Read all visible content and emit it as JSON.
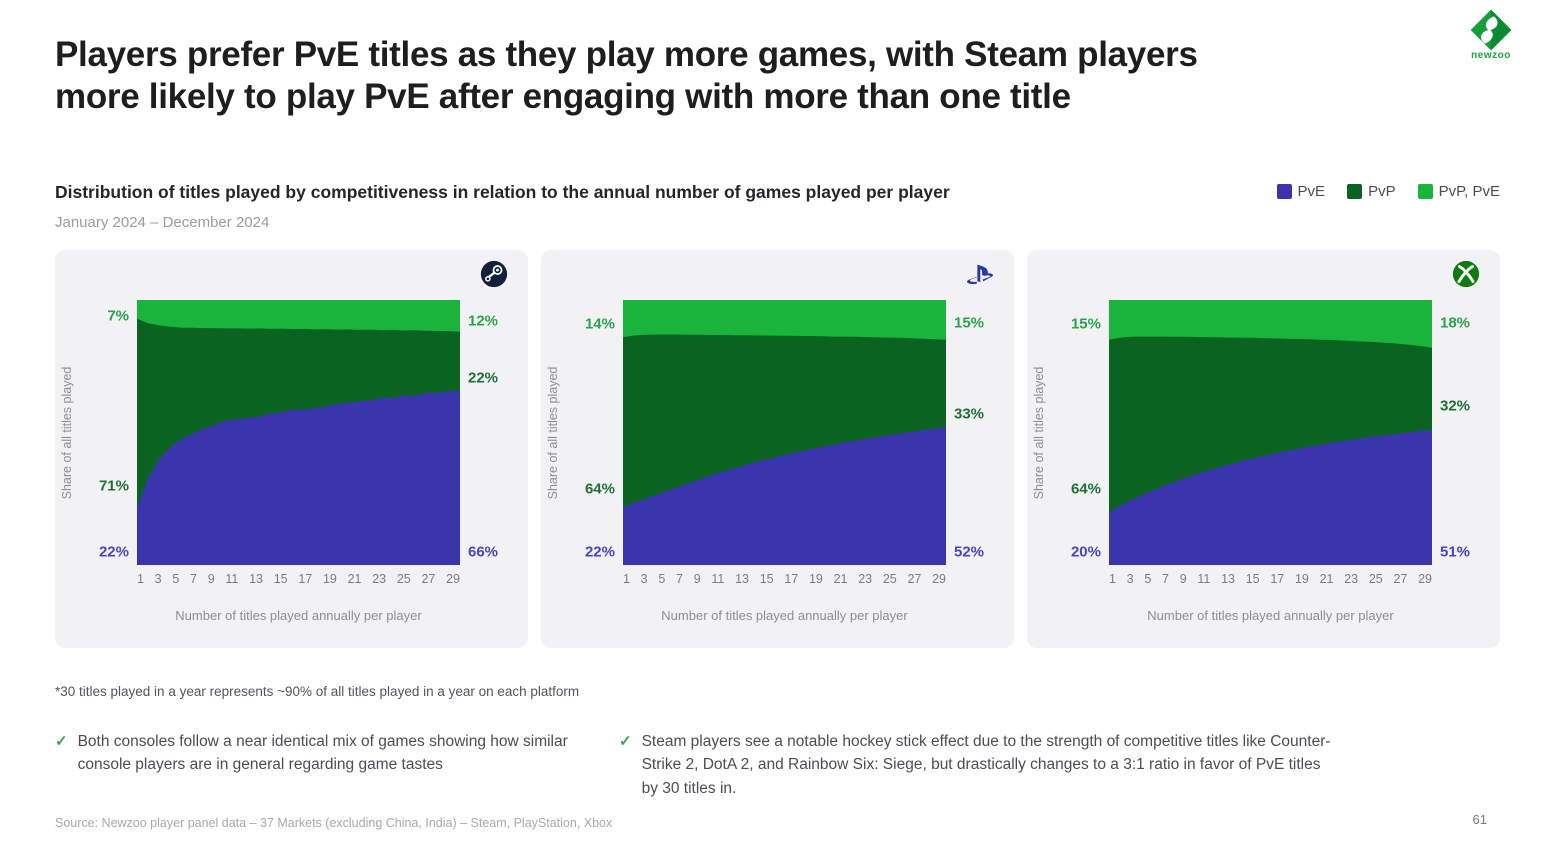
{
  "page": {
    "title_lines": [
      "Players prefer PvE titles as they play more games, with Steam players",
      "more likely to play PvE after engaging with more than one title"
    ],
    "page_number": "61"
  },
  "logo": {
    "brand": "newzoo"
  },
  "chart_section": {
    "heading": "Distribution of titles played by competitiveness in relation to the annual number of games played per player",
    "period": "January 2024 – December 2024",
    "legend": [
      {
        "label": "PvE",
        "band": "pve"
      },
      {
        "label": "PvP",
        "band": "pvp"
      },
      {
        "label": "PvP, PvE",
        "band": "pvp_pve"
      }
    ],
    "axis": {
      "x_label": "Number of titles played annually per player",
      "y_label": "Share of all titles played",
      "x_ticks": [
        "1",
        "3",
        "5",
        "7",
        "9",
        "11",
        "13",
        "15",
        "17",
        "19",
        "21",
        "23",
        "25",
        "27",
        "29"
      ]
    }
  },
  "colors": {
    "pve": "#3b35ad",
    "pvp": "#0b6322",
    "pvp_pve": "#1ab33c",
    "pve_label": "#4b43c2",
    "pvp_label": "#1d7034",
    "pvp_pve_label": "#2aa34a"
  },
  "chart_data": [
    {
      "type": "stacked_area",
      "platform": "Steam",
      "x_range": [
        1,
        30
      ],
      "ylim": [
        0,
        100
      ],
      "series_pve": [
        22,
        33,
        40,
        44.5,
        47.5,
        49.5,
        51.5,
        53,
        54.5,
        55,
        55.5,
        56,
        57.3,
        57.6,
        58.8,
        58.6,
        59.2,
        59.8,
        60.8,
        61.2,
        61.8,
        62.1,
        63.2,
        63,
        64.2,
        63.8,
        65.2,
        65,
        65.6,
        66
      ],
      "series_pvp_pve": [
        7,
        8.8,
        9.6,
        10.1,
        10.4,
        10.5,
        10.6,
        10.6,
        10.7,
        10.7,
        10.8,
        10.7,
        10.9,
        10.8,
        11,
        10.9,
        11.1,
        11,
        11.2,
        11.1,
        11.3,
        11.2,
        11.4,
        11.3,
        11.5,
        11.4,
        11.6,
        11.7,
        11.8,
        12
      ],
      "left_labels": [
        {
          "text": "7%",
          "band": "pvp_pve",
          "pos": 6
        },
        {
          "text": "71%",
          "band": "pvp",
          "pos": 70
        },
        {
          "text": "22%",
          "band": "pve",
          "pos": 95
        }
      ],
      "right_labels": [
        {
          "text": "12%",
          "band": "pvp_pve",
          "pos": 8
        },
        {
          "text": "22%",
          "band": "pvp",
          "pos": 29.5
        },
        {
          "text": "66%",
          "band": "pve",
          "pos": 95
        }
      ]
    },
    {
      "type": "stacked_area",
      "platform": "PlayStation",
      "x_range": [
        1,
        30
      ],
      "ylim": [
        0,
        100
      ],
      "series_pve": [
        22,
        23.5,
        25,
        26.5,
        28,
        29.5,
        31,
        32.5,
        34,
        35.3,
        36.5,
        37.8,
        39,
        40,
        41,
        42,
        43,
        43.8,
        44.7,
        45.5,
        46.3,
        47,
        47.8,
        48.4,
        49.1,
        49.7,
        50.3,
        50.9,
        51.5,
        52
      ],
      "series_pvp_pve": [
        14,
        13.4,
        13.1,
        13,
        13,
        13,
        13.1,
        13.1,
        13.2,
        13.2,
        13.3,
        13.3,
        13.4,
        13.4,
        13.5,
        13.5,
        13.6,
        13.6,
        13.7,
        13.8,
        13.8,
        13.9,
        14,
        14.1,
        14.2,
        14.3,
        14.4,
        14.6,
        14.8,
        15
      ],
      "left_labels": [
        {
          "text": "14%",
          "band": "pvp_pve",
          "pos": 9
        },
        {
          "text": "64%",
          "band": "pvp",
          "pos": 71.5
        },
        {
          "text": "22%",
          "band": "pve",
          "pos": 95
        }
      ],
      "right_labels": [
        {
          "text": "15%",
          "band": "pvp_pve",
          "pos": 8.5
        },
        {
          "text": "33%",
          "band": "pvp",
          "pos": 43
        },
        {
          "text": "52%",
          "band": "pve",
          "pos": 95
        }
      ]
    },
    {
      "type": "stacked_area",
      "platform": "Xbox",
      "x_range": [
        1,
        30
      ],
      "ylim": [
        0,
        100
      ],
      "series_pve": [
        20,
        22.5,
        24.5,
        26.5,
        28.3,
        30,
        31.6,
        33.1,
        34.5,
        35.8,
        37,
        38.2,
        39.3,
        40.3,
        41.3,
        42.2,
        43.1,
        43.9,
        44.7,
        45.4,
        46.1,
        46.8,
        47.4,
        48,
        48.6,
        49.1,
        49.6,
        50.1,
        50.6,
        51
      ],
      "series_pvp_pve": [
        15,
        14.2,
        13.9,
        13.8,
        13.8,
        13.8,
        13.9,
        13.9,
        14,
        14,
        14.1,
        14.2,
        14.2,
        14.3,
        14.4,
        14.5,
        14.6,
        14.7,
        14.8,
        15,
        15.1,
        15.3,
        15.5,
        15.7,
        15.9,
        16.2,
        16.5,
        16.9,
        17.4,
        18
      ],
      "left_labels": [
        {
          "text": "15%",
          "band": "pvp_pve",
          "pos": 9
        },
        {
          "text": "64%",
          "band": "pvp",
          "pos": 71.5
        },
        {
          "text": "20%",
          "band": "pve",
          "pos": 95
        }
      ],
      "right_labels": [
        {
          "text": "18%",
          "band": "pvp_pve",
          "pos": 8.5
        },
        {
          "text": "32%",
          "band": "pvp",
          "pos": 40
        },
        {
          "text": "51%",
          "band": "pve",
          "pos": 95
        }
      ]
    }
  ],
  "footnote": "*30 titles played in a year represents ~90% of all titles played in a year on each platform",
  "insights": [
    {
      "text": "Both consoles follow a near identical mix of games showing how similar console players are in general regarding game tastes"
    },
    {
      "text": "Steam players see a notable hockey stick effect due to the strength of competitive titles like Counter-Strike 2, DotA 2, and Rainbow Six: Siege, but drastically changes to a 3:1 ratio in favor of PvE titles by 30 titles in."
    }
  ],
  "source": "Source: Newzoo player panel data – 37 Markets (excluding China, India) – Steam, PlayStation, Xbox"
}
